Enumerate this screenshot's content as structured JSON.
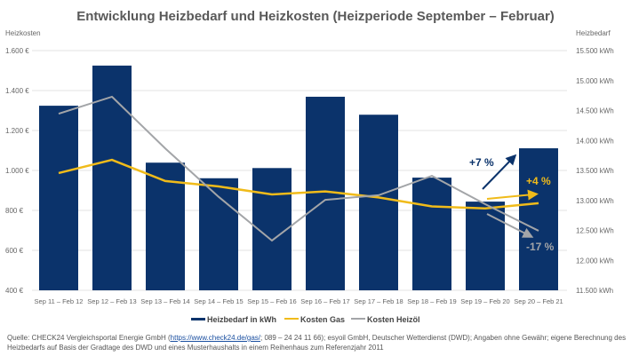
{
  "chart_data": {
    "type": "bar",
    "title": "Entwicklung Heizbedarf und Heizkosten (Heizperiode September – Februar)",
    "ylabel_left": "Heizkosten",
    "ylabel_right": "Heizbedarf",
    "ylim_left": [
      400,
      1600
    ],
    "ylim_right": [
      11500,
      15500
    ],
    "left_ticks": [
      "400 €",
      "600 €",
      "800 €",
      "1.000 €",
      "1.200 €",
      "1.400 €",
      "1.600 €"
    ],
    "right_ticks": [
      "11.500 kWh",
      "12.000 kWh",
      "12.500 kWh",
      "13.000 kWh",
      "13.500 kWh",
      "14.000 kWh",
      "14.500 kWh",
      "15.000 kWh",
      "15.500 kWh"
    ],
    "categories": [
      "Sep 11 – Feb 12",
      "Sep 12 – Feb 13",
      "Sep 13 – Feb 14",
      "Sep 14 – Feb 15",
      "Sep 15 – Feb 16",
      "Sep 16 – Feb 17",
      "Sep 17 – Feb 18",
      "Sep 18 – Feb 19",
      "Sep 19 – Feb 20",
      "Sep 20 – Feb 21"
    ],
    "grid": true,
    "legend_placement": "bottom",
    "series": [
      {
        "name": "Heizbedarf in kWh",
        "type": "bar",
        "axis": "right",
        "color": "#0b336b",
        "values": [
          14580,
          15250,
          13630,
          13370,
          13540,
          14730,
          14430,
          13380,
          12980,
          13870
        ]
      },
      {
        "name": "Kosten Gas",
        "type": "line",
        "axis": "left",
        "color": "#f0bb1a",
        "values": [
          987,
          1053,
          947,
          920,
          880,
          895,
          865,
          820,
          810,
          836
        ]
      },
      {
        "name": "Kosten Heizöl",
        "type": "line",
        "axis": "left",
        "color": "#a3a5a8",
        "values": [
          1284,
          1369,
          1110,
          868,
          649,
          853,
          876,
          973,
          831,
          698
        ]
      }
    ],
    "annotations": [
      {
        "text": "+7 %",
        "color": "#0b336b"
      },
      {
        "text": "+4 %",
        "color": "#f0bb1a"
      },
      {
        "text": "-17 %",
        "color": "#a3a5a8"
      }
    ]
  },
  "source": {
    "prefix": "Quelle: CHECK24 Vergleichsportal Energie GmbH (",
    "link": "https://www.check24.de/gas/",
    "rest": "; 089 – 24 24 11 66); esyoil GmbH, Deutscher Wetterdienst (DWD); Angaben ohne Gewähr; eigene Berechnung des Heizbedarfs auf Basis der Gradtage des DWD und eines Musterhaushalts in einem Reihenhaus zum Referenzjahr 2011"
  }
}
